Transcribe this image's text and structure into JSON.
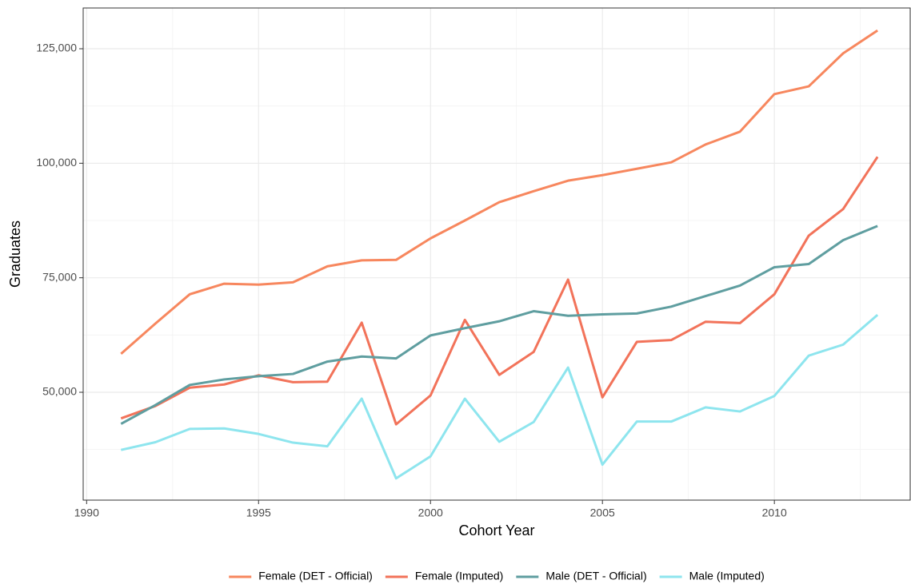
{
  "chart_data": {
    "type": "line",
    "x_label": "Cohort Year",
    "y_label": "Graduates",
    "x": [
      1991,
      1992,
      1993,
      1994,
      1995,
      1996,
      1997,
      1998,
      1999,
      2000,
      2001,
      2002,
      2003,
      2004,
      2005,
      2006,
      2007,
      2008,
      2009,
      2010,
      2011,
      2012,
      2013
    ],
    "series": [
      {
        "name": "Female (DET - Official)",
        "color": "#F7875E",
        "values": [
          58400,
          65000,
          71400,
          73700,
          73500,
          74000,
          77500,
          78800,
          78900,
          83600,
          87500,
          91500,
          93900,
          96200,
          97400,
          98800,
          100200,
          104100,
          106900,
          115100,
          116800,
          124000,
          129000
        ]
      },
      {
        "name": "Female (Imputed)",
        "color": "#F2735A",
        "values": [
          44300,
          47000,
          51000,
          51700,
          53700,
          52200,
          52300,
          65200,
          43000,
          49300,
          65800,
          53800,
          58800,
          74600,
          48900,
          61000,
          61400,
          65400,
          65100,
          71400,
          84200,
          90000,
          101400
        ]
      },
      {
        "name": "Male (DET - Official)",
        "color": "#5F9EA0",
        "values": [
          43100,
          47200,
          51600,
          52800,
          53500,
          54000,
          56700,
          57800,
          57400,
          62400,
          64000,
          65500,
          67700,
          66700,
          67000,
          67200,
          68700,
          71000,
          73300,
          77300,
          78000,
          83200,
          86300
        ]
      },
      {
        "name": "Male (Imputed)",
        "color": "#8EE5EE",
        "values": [
          37400,
          39100,
          42000,
          42100,
          40900,
          39000,
          38200,
          48600,
          31200,
          36000,
          48600,
          39200,
          43500,
          55400,
          34200,
          43600,
          43600,
          46700,
          45800,
          49200,
          58000,
          60400,
          66900
        ]
      }
    ],
    "xlim": [
      1989.9,
      2013.95
    ],
    "ylim": [
      26450,
      133900
    ],
    "xticks": [
      1990,
      1995,
      2000,
      2005,
      2010
    ],
    "yticks": [
      {
        "value": 50000,
        "label": "50,000"
      },
      {
        "value": 75000,
        "label": "75,000"
      },
      {
        "value": 100000,
        "label": "100,000"
      },
      {
        "value": 125000,
        "label": "125,000"
      }
    ],
    "grid": true,
    "legend": "bottom"
  }
}
